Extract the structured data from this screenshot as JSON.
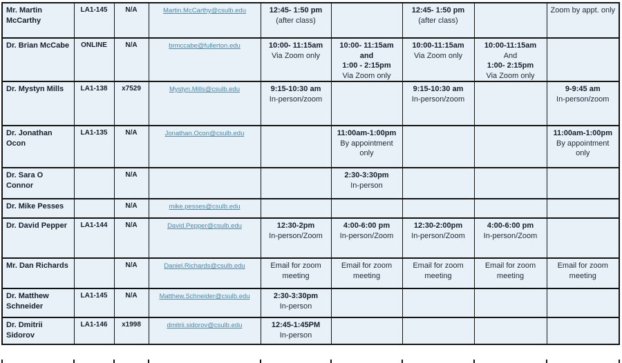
{
  "colors": {
    "cell_background": "#e8f0f8",
    "border": "#121212",
    "link": "#4e87a4",
    "text_bold": "#141f2b",
    "text_regular": "#1c2835",
    "page_background": "#ffffff"
  },
  "table": {
    "description": "Faculty office hours table (header row cut off above screenshot)",
    "rows": [
      {
        "name": "Mr. Martin McCarthy",
        "office": "LA1-145",
        "phone": "N/A",
        "email": "Martin.McCarthy@csulb.edu",
        "slots": [
          [
            {
              "text": "12:45- 1:50 pm",
              "bold": true
            },
            {
              "text": "(after class)",
              "bold": false
            }
          ],
          [],
          [
            {
              "text": "12:45- 1:50 pm",
              "bold": true
            },
            {
              "text": "(after class)",
              "bold": false
            }
          ],
          [],
          [
            {
              "text": "Zoom by appt. only",
              "bold": false
            }
          ]
        ]
      },
      {
        "name": "Dr. Brian McCabe",
        "office": "ONLINE",
        "phone": "N/A",
        "email": "brmccabe@fullerton.edu",
        "slots": [
          [
            {
              "text": "10:00- 11:15am",
              "bold": true
            },
            {
              "text": "Via Zoom only",
              "bold": false
            }
          ],
          [
            {
              "text": "10:00- 11:15am",
              "bold": true
            },
            {
              "text": "and",
              "bold": true
            },
            {
              "text": "1:00 - 2:15pm",
              "bold": true
            },
            {
              "text": "Via Zoom only",
              "bold": false
            }
          ],
          [
            {
              "text": "10:00-11:15am",
              "bold": true
            },
            {
              "text": "Via Zoom only",
              "bold": false
            }
          ],
          [
            {
              "text": "10:00-11:15am",
              "bold": true
            },
            {
              "text": "And",
              "bold": false
            },
            {
              "text": "1:00- 2:15pm",
              "bold": true
            },
            {
              "text": "Via Zoom only",
              "bold": false
            }
          ],
          []
        ]
      },
      {
        "name": "Dr. Mystyn Mills",
        "office": "LA1-138",
        "phone": "x7529",
        "email": "Mystyn.Mills@csulb.edu",
        "slots": [
          [
            {
              "text": "9:15-10:30 am",
              "bold": true
            },
            {
              "text": "In-person/zoom",
              "bold": false
            }
          ],
          [],
          [
            {
              "text": "9:15-10:30 am",
              "bold": true
            },
            {
              "text": "In-person/zoom",
              "bold": false
            }
          ],
          [],
          [
            {
              "text": "9-9:45 am",
              "bold": true
            },
            {
              "text": "In-person/zoom",
              "bold": false
            }
          ]
        ]
      },
      {
        "name": "Dr. Jonathan Ocon",
        "office": "LA1-135",
        "phone": "N/A",
        "email": "Jonathan.Ocon@csulb.edu",
        "slots": [
          [],
          [
            {
              "text": "11:00am-1:00pm",
              "bold": true
            },
            {
              "text": "By appointment only",
              "bold": false
            }
          ],
          [],
          [],
          [
            {
              "text": "11:00am-1:00pm",
              "bold": true
            },
            {
              "text": "By appointment only",
              "bold": false
            }
          ]
        ]
      },
      {
        "name": "Dr. Sara O Connor",
        "office": "",
        "phone": "N/A",
        "email": "",
        "slots": [
          [],
          [
            {
              "text": "2:30-3:30pm",
              "bold": true
            },
            {
              "text": "In-person",
              "bold": false
            }
          ],
          [],
          [],
          []
        ]
      },
      {
        "name": "Dr. Mike Pesses",
        "office": "",
        "phone": "N/A",
        "email": "mike.pesses@csulb.edu",
        "slots": [
          [],
          [],
          [],
          [],
          []
        ]
      },
      {
        "name": "Dr. David Pepper",
        "office": "LA1-144",
        "phone": "N/A",
        "email": "David.Pepper@csulb.edu",
        "slots": [
          [
            {
              "text": "12:30-2pm",
              "bold": true
            },
            {
              "text": "In-person/Zoom",
              "bold": false
            }
          ],
          [
            {
              "text": "4:00-6:00 pm",
              "bold": true
            },
            {
              "text": "In-person/Zoom",
              "bold": false
            }
          ],
          [
            {
              "text": "12:30-2:00pm",
              "bold": true
            },
            {
              "text": "In-person/Zoom",
              "bold": false
            }
          ],
          [
            {
              "text": "4:00-6:00 pm",
              "bold": true
            },
            {
              "text": "In-person/Zoom",
              "bold": false
            }
          ],
          []
        ]
      },
      {
        "name": "Mr. Dan Richards",
        "office": "",
        "phone": "N/A",
        "email": "Daniel.Richards@csulb.edu",
        "slots": [
          [
            {
              "text": "Email for zoom meeting",
              "bold": false
            }
          ],
          [
            {
              "text": "Email for zoom meeting",
              "bold": false
            }
          ],
          [
            {
              "text": "Email for zoom meeting",
              "bold": false
            }
          ],
          [
            {
              "text": "Email for zoom meeting",
              "bold": false
            }
          ],
          [
            {
              "text": "Email for zoom meeting",
              "bold": false
            }
          ]
        ]
      },
      {
        "name": "Dr. Matthew Schneider",
        "office": "LA1-145",
        "phone": "N/A",
        "email": "Matthew.Schneider@csulb.edu",
        "slots": [
          [
            {
              "text": "2:30-3:30pm",
              "bold": true
            },
            {
              "text": "In-person",
              "bold": false
            }
          ],
          [],
          [],
          [],
          []
        ]
      },
      {
        "name": "Dr. Dmitrii Sidorov",
        "office": "LA1-146",
        "phone": "x1998",
        "email": "dmitrii.sidorov@csulb.edu",
        "slots": [
          [
            {
              "text": "12:45-1:45PM",
              "bold": true
            },
            {
              "text": "In-person",
              "bold": false
            }
          ],
          [],
          [],
          [],
          []
        ]
      }
    ]
  }
}
